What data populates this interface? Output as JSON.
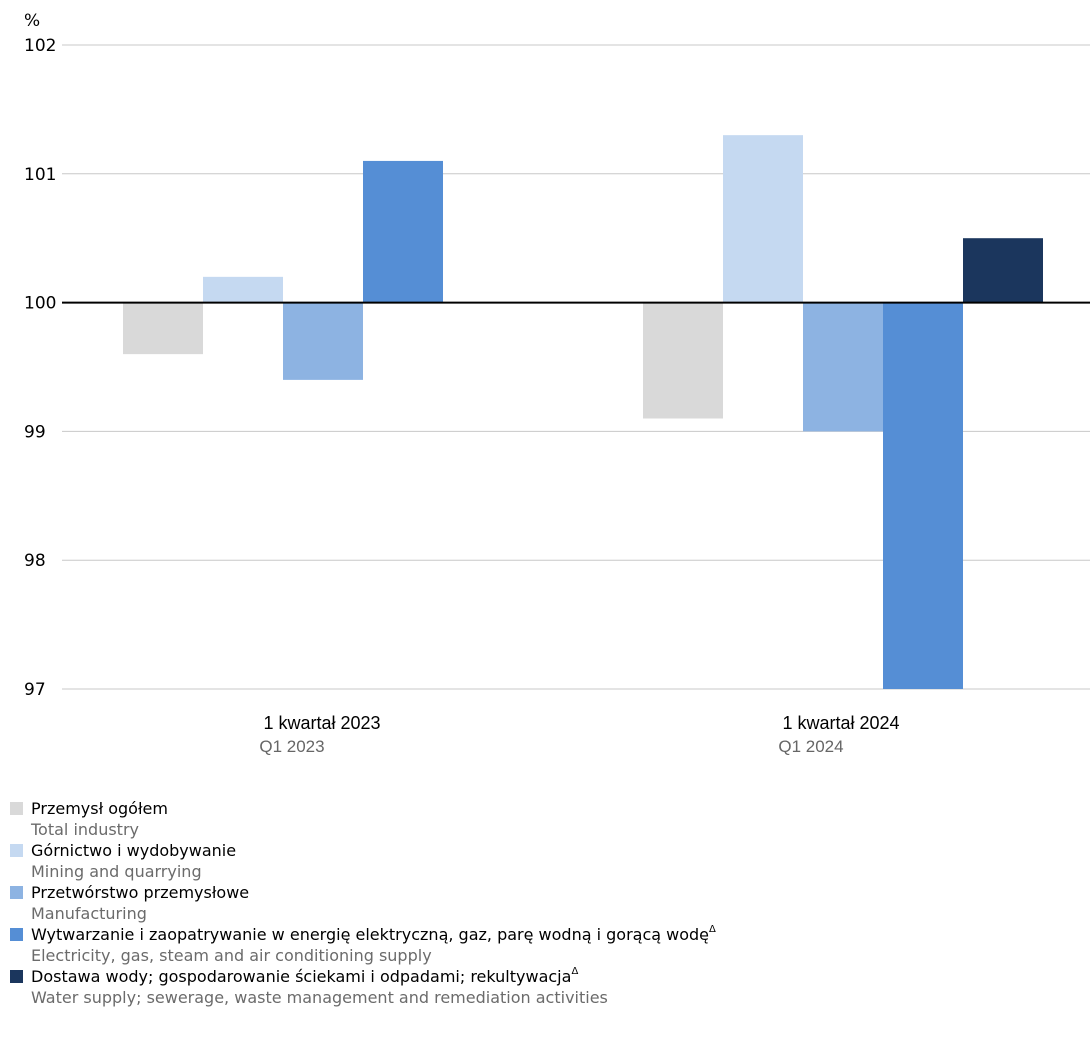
{
  "chart_data": {
    "type": "bar",
    "ylabel": "%",
    "ylim": [
      97,
      102
    ],
    "yticks": [
      97,
      98,
      99,
      100,
      101,
      102
    ],
    "baseline": 100,
    "grid": true,
    "legend_position": "bottom",
    "categories": [
      "1 kwartał 2023",
      "1 kwartał 2024"
    ],
    "category_subtitles": [
      "Q1 2023",
      "Q1 2024"
    ],
    "series": [
      {
        "name": "Przemysł ogółem",
        "name_en": "Total industry",
        "color": "#d9d9d9",
        "values": [
          99.6,
          99.1
        ]
      },
      {
        "name": "Górnictwo i wydobywanie",
        "name_en": "Mining and quarrying",
        "color": "#c5d9f1",
        "values": [
          100.2,
          101.3
        ]
      },
      {
        "name": "Przetwórstwo przemysłowe",
        "name_en": "Manufacturing",
        "color": "#8db3e2",
        "values": [
          99.4,
          99.0
        ]
      },
      {
        "name": "Wytwarzanie i zaopatrywanie w energię elektryczną, gaz, parę wodną i gorącą wodę",
        "name_en": "Electricity, gas, steam and air conditioning supply",
        "color": "#558ed5",
        "marker": "Δ",
        "values": [
          101.1,
          97.0
        ]
      },
      {
        "name": "Dostawa wody; gospodarowanie ściekami i odpadami; rekultywacja",
        "name_en": "Water supply; sewerage, waste management and remediation activities",
        "color": "#1b365d",
        "marker": "Δ",
        "values": [
          null,
          100.5
        ]
      }
    ]
  }
}
